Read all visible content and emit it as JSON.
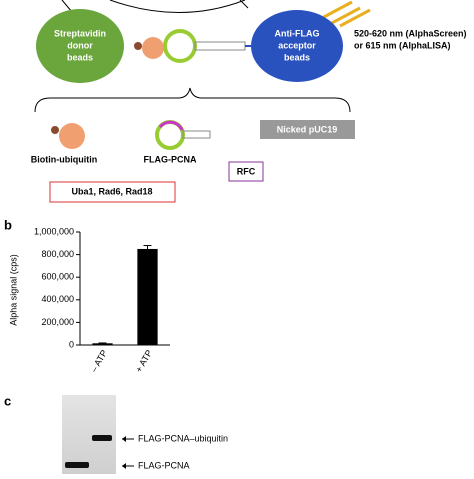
{
  "panel_a": {
    "donor_bead": [
      "Streptavidin",
      "donor",
      "beads"
    ],
    "acceptor_bead": [
      "Anti-FLAG",
      "acceptor",
      "beads"
    ],
    "emission": [
      "520-620 nm (AlphaScreen)",
      "or 615 nm (AlphaLISA)"
    ],
    "components": {
      "biotin_ubiquitin": "Biotin-ubiquitin",
      "flag_pcna": "FLAG-PCNA",
      "dna": "Nicked pUC19",
      "enzymes": "Uba1, Rad6, Rad18",
      "rfc": "RFC"
    }
  },
  "chart_data": {
    "type": "bar",
    "panel_label": "b",
    "y_label": "Alpha signal (cps)",
    "categories": [
      "– ATP",
      "+ ATP"
    ],
    "values": [
      15000,
      850000
    ],
    "errors": [
      3000,
      30000
    ],
    "color": "#000000",
    "ylim": [
      0,
      1000000
    ],
    "yticks": [
      0,
      {
        "value": 200000,
        "label": "200,000"
      },
      {
        "value": 400000,
        "label": "400,000"
      },
      {
        "value": 600000,
        "label": "600,000"
      },
      {
        "value": 800000,
        "label": "800,000"
      },
      {
        "value": 1000000,
        "label": "1,000,000"
      }
    ]
  },
  "panel_c": {
    "panel_label": "c",
    "bands": [
      "FLAG-PCNA–ubiquitin",
      "FLAG-PCNA"
    ]
  }
}
